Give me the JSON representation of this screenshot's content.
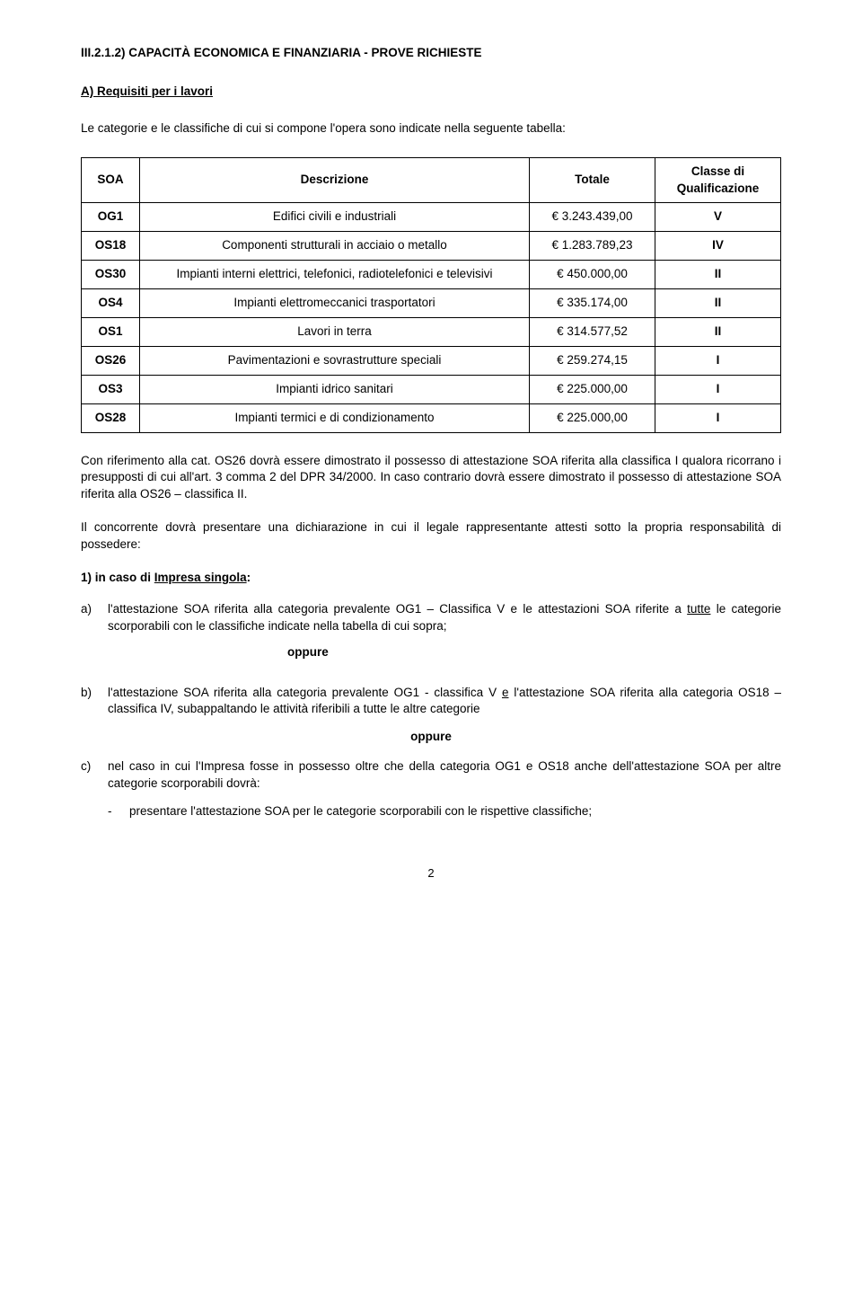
{
  "section_title_prefix": "III.2.1.2) C",
  "section_title_rest": "APACITÀ ECONOMICA E FINANZIARIA - PROVE RICHIESTE",
  "subsection_title": "A) Requisiti per i lavori",
  "intro_text": "Le categorie e le classifiche di cui si compone l'opera sono indicate nella seguente tabella:",
  "table": {
    "headers": [
      "SOA",
      "Descrizione",
      "Totale",
      "Classe di Qualificazione"
    ],
    "rows": [
      {
        "code": "OG1",
        "desc": "Edifici civili e industriali",
        "total": "€ 3.243.439,00",
        "class": "V"
      },
      {
        "code": "OS18",
        "desc": "Componenti strutturali in acciaio o metallo",
        "total": "€ 1.283.789,23",
        "class": "IV"
      },
      {
        "code": "OS30",
        "desc": "Impianti interni elettrici, telefonici, radiotelefonici e televisivi",
        "total": "€ 450.000,00",
        "class": "II"
      },
      {
        "code": "OS4",
        "desc": "Impianti elettromeccanici trasportatori",
        "total": "€ 335.174,00",
        "class": "II"
      },
      {
        "code": "OS1",
        "desc": "Lavori in terra",
        "total": "€ 314.577,52",
        "class": "II"
      },
      {
        "code": "OS26",
        "desc": "Pavimentazioni e sovrastrutture speciali",
        "total": "€ 259.274,15",
        "class": "I"
      },
      {
        "code": "OS3",
        "desc": "Impianti idrico sanitari",
        "total": "€ 225.000,00",
        "class": "I"
      },
      {
        "code": "OS28",
        "desc": "Impianti termici e di condizionamento",
        "total": "€ 225.000,00",
        "class": "I"
      }
    ]
  },
  "para1": "Con riferimento alla cat. OS26 dovrà essere dimostrato il possesso di attestazione SOA riferita alla classifica I qualora ricorrano i presupposti di cui all'art. 3 comma 2 del DPR 34/2000. In caso contrario dovrà essere dimostrato il possesso di attestazione SOA riferita alla OS26 – classifica II.",
  "para2": "Il concorrente dovrà presentare una dichiarazione in cui il legale rappresentante attesti sotto la propria responsabilità di possedere:",
  "list1_prefix": "1)",
  "list1_text": " in caso di ",
  "list1_underline": "Impresa singola",
  "list1_suffix": ":",
  "item_a_letter": "a)",
  "item_a_text": "l'attestazione SOA riferita alla categoria prevalente OG1 – Classifica V e le attestazioni SOA riferite a ",
  "item_a_underline": "tutte",
  "item_a_text2": " le categorie scorporabili con le classifiche indicate nella tabella di cui sopra;",
  "oppure": "oppure",
  "item_b_letter": "b)",
  "item_b_text": "l'attestazione SOA riferita alla categoria prevalente OG1 - classifica V ",
  "item_b_underline": "e",
  "item_b_text2": " l'attestazione SOA riferita alla categoria OS18 – classifica IV, subappaltando le attività riferibili a tutte le altre categorie",
  "item_c_letter": "c)",
  "item_c_text": "nel caso in cui l'Impresa fosse in possesso oltre che della categoria OG1 e OS18 anche dell'attestazione SOA per altre categorie scorporabili dovrà:",
  "sub_dash": "-",
  "sub_text": "presentare l'attestazione SOA per le categorie scorporabili con le rispettive classifiche;",
  "page_num": "2"
}
